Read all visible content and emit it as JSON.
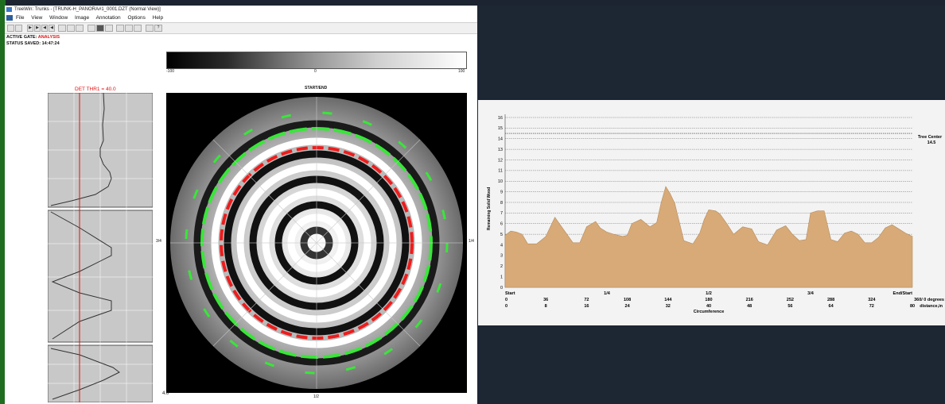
{
  "window": {
    "title": "TreeWin: Trunks - [TRUNK-H_PANORA#1_0001.DZT (Normal View)]",
    "menu": [
      "File",
      "View",
      "Window",
      "Image",
      "Annotation",
      "Options",
      "Help"
    ]
  },
  "status": {
    "gate_label": "ACTIVE GATE:",
    "gate_value": "ANALYSIS",
    "saved_label": "STATUS SAVED:",
    "saved_value": "14:47:24"
  },
  "colorbar": {
    "min": "-100",
    "mid": "0",
    "max": "100"
  },
  "profile": {
    "threshold_label": "DET THR1 =  40.0"
  },
  "polar": {
    "label_top": "START/END",
    "label_left": "3/4",
    "label_right": "1/4",
    "label_bottom": "1/2",
    "label_corner": "4.0"
  },
  "colors": {
    "green_ring": "#39e639",
    "red_ring": "#ee1c1c",
    "fill": "#d7aa78"
  },
  "chart_data": {
    "type": "area",
    "ylabel": "Remaining Solid Wood",
    "xlabel": "Circumference",
    "ylim": [
      0,
      16
    ],
    "yticks": [
      "0",
      "1",
      "2",
      "3",
      "4",
      "5",
      "6",
      "7",
      "8",
      "9",
      "10",
      "11",
      "12",
      "13",
      "14",
      "15",
      "16"
    ],
    "fractions": [
      "Start",
      "1/4",
      "1/2",
      "3/4",
      "End/Start"
    ],
    "degree_ticks": [
      "0",
      "36",
      "72",
      "108",
      "144",
      "180",
      "216",
      "252",
      "288",
      "324",
      "360/ 0 degrees"
    ],
    "distance_ticks": [
      "0",
      "8",
      "16",
      "24",
      "32",
      "40",
      "48",
      "56",
      "64",
      "72",
      "80",
      "distance,in"
    ],
    "annotation": {
      "label": "Tree Center",
      "value": "14.5"
    },
    "x": [
      0,
      5,
      10,
      15,
      20,
      28,
      36,
      44,
      52,
      60,
      66,
      72,
      80,
      84,
      90,
      96,
      104,
      108,
      112,
      120,
      128,
      134,
      138,
      142,
      146,
      150,
      158,
      166,
      172,
      176,
      180,
      186,
      190,
      196,
      202,
      210,
      218,
      224,
      232,
      240,
      248,
      254,
      260,
      266,
      270,
      276,
      282,
      288,
      294,
      300,
      306,
      312,
      318,
      324,
      330,
      336,
      342,
      348,
      354,
      360
    ],
    "values": [
      4.9,
      5.3,
      5.2,
      5.0,
      4.1,
      4.1,
      4.8,
      6.6,
      5.4,
      4.2,
      4.2,
      5.7,
      6.2,
      5.6,
      5.2,
      5.0,
      4.8,
      4.9,
      6.0,
      6.4,
      5.7,
      6.1,
      8.0,
      9.5,
      8.8,
      7.9,
      4.4,
      4.1,
      5.1,
      6.4,
      7.3,
      7.2,
      6.9,
      6.0,
      5.0,
      5.7,
      5.5,
      4.3,
      4.0,
      5.4,
      5.8,
      5.0,
      4.4,
      4.5,
      7.0,
      7.2,
      7.2,
      4.5,
      4.3,
      5.1,
      5.3,
      5.0,
      4.2,
      4.2,
      4.7,
      5.6,
      5.9,
      5.5,
      5.1,
      4.8
    ]
  }
}
